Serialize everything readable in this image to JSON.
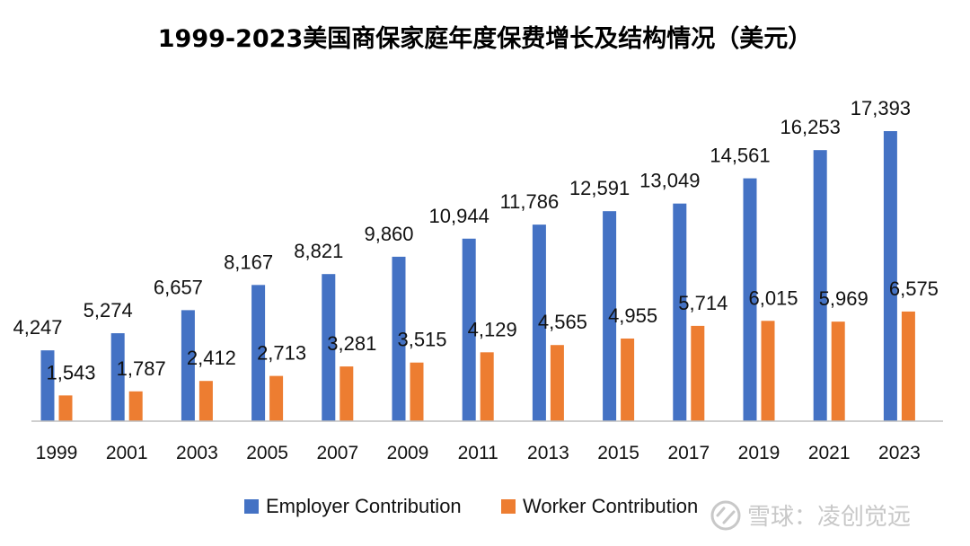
{
  "chart_data": {
    "type": "bar",
    "title": "1999-2023美国商保家庭年度保费增长及结构情况（美元）",
    "categories": [
      "1999",
      "2001",
      "2003",
      "2005",
      "2007",
      "2009",
      "2011",
      "2013",
      "2015",
      "2017",
      "2019",
      "2021",
      "2023"
    ],
    "series": [
      {
        "name": "Employer Contribution",
        "color": "#4472C4",
        "values": [
          4247,
          5274,
          6657,
          8167,
          8821,
          9860,
          10944,
          11786,
          12591,
          13049,
          14561,
          16253,
          17393
        ]
      },
      {
        "name": "Worker Contribution",
        "color": "#ED7D31",
        "values": [
          1543,
          1787,
          2412,
          2713,
          3281,
          3515,
          4129,
          4565,
          4955,
          5714,
          6015,
          5969,
          6575
        ]
      }
    ],
    "data_labels": {
      "Employer Contribution": [
        "4,247",
        "5,274",
        "6,657",
        "8,167",
        "8,821",
        "9,860",
        "10,944",
        "11,786",
        "12,591",
        "13,049",
        "14,561",
        "16,253",
        "17,393"
      ],
      "Worker Contribution": [
        "1,543",
        "1,787",
        "2,412",
        "2,713",
        "3,281",
        "3,515",
        "4,129",
        "4,565",
        "4,955",
        "5,714",
        "6,015",
        "5,969",
        "6,575"
      ]
    },
    "xlabel": "",
    "ylabel": "",
    "ylim": [
      0,
      17393
    ],
    "grid": false,
    "legend": "bottom"
  },
  "watermark": {
    "text": "雪球：凌创觉远",
    "icon": "snowball-logo-icon"
  }
}
